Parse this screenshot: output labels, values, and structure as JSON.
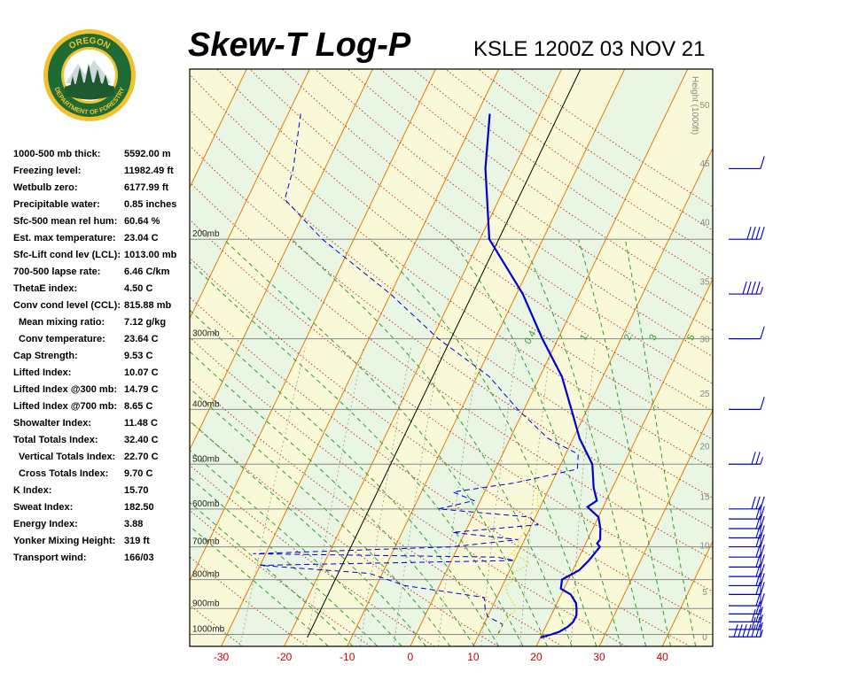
{
  "header": {
    "title": "Skew-T Log-P",
    "subtitle": "KSLE 1200Z 03 NOV 21"
  },
  "logo": {
    "top_text": "OREGON",
    "bottom_text": "DEPARTMENT OF FORESTRY",
    "colors": {
      "ring": "#1f6b34",
      "gold": "#f2c12e",
      "tree": "#1e5a2e",
      "sky": "#ffffff"
    }
  },
  "indices": [
    {
      "label": "1000-500 mb thick:",
      "value": "5592.00 m",
      "indent": false
    },
    {
      "label": "Freezing level:",
      "value": "11982.49 ft",
      "indent": false
    },
    {
      "label": "Wetbulb zero:",
      "value": "6177.99 ft",
      "indent": false
    },
    {
      "label": "Precipitable water:",
      "value": "0.85 inches",
      "indent": false
    },
    {
      "label": "Sfc-500 mean rel hum:",
      "value": "60.64 %",
      "indent": false
    },
    {
      "label": "Est. max temperature:",
      "value": "23.04 C",
      "indent": false
    },
    {
      "label": "Sfc-Lift cond lev (LCL):",
      "value": "1013.00 mb",
      "indent": false
    },
    {
      "label": "700-500 lapse rate:",
      "value": "6.46 C/km",
      "indent": false
    },
    {
      "label": "ThetaE index:",
      "value": "4.50 C",
      "indent": false
    },
    {
      "label": "Conv cond level (CCL):",
      "value": "815.88 mb",
      "indent": false
    },
    {
      "label": "Mean mixing ratio:",
      "value": "7.12 g/kg",
      "indent": true
    },
    {
      "label": "Conv temperature:",
      "value": "23.64 C",
      "indent": true
    },
    {
      "label": "Cap Strength:",
      "value": "9.53 C",
      "indent": false
    },
    {
      "label": "Lifted Index:",
      "value": "10.07 C",
      "indent": false
    },
    {
      "label": "Lifted Index @300 mb:",
      "value": "14.79 C",
      "indent": false
    },
    {
      "label": "Lifted Index @700 mb:",
      "value": "8.65 C",
      "indent": false
    },
    {
      "label": "Showalter Index:",
      "value": "11.48 C",
      "indent": false
    },
    {
      "label": "Total Totals Index:",
      "value": "32.40 C",
      "indent": false
    },
    {
      "label": "Vertical Totals Index:",
      "value": "22.70 C",
      "indent": true
    },
    {
      "label": "Cross Totals Index:",
      "value": "9.70 C",
      "indent": true
    },
    {
      "label": "K Index:",
      "value": "15.70",
      "indent": false
    },
    {
      "label": "Sweat Index:",
      "value": "182.50",
      "indent": false
    },
    {
      "label": "Energy Index:",
      "value": "3.88",
      "indent": false
    },
    {
      "label": "Yonker Mixing Height:",
      "value": "319 ft",
      "indent": false
    },
    {
      "label": "Transport wind:",
      "value": "166/03",
      "indent": false
    }
  ],
  "chart_data": {
    "type": "line",
    "chart_kind": "skew-T log-P diagram",
    "x_label_units": "C",
    "xlim": [
      -35,
      48
    ],
    "x_ticks": [
      -30,
      -20,
      -10,
      0,
      10,
      20,
      30,
      40
    ],
    "pressure_range_mb": [
      1050,
      100
    ],
    "pressure_levels": [
      {
        "p": 200,
        "label": "200mb"
      },
      {
        "p": 300,
        "label": "300mb"
      },
      {
        "p": 400,
        "label": "400mb"
      },
      {
        "p": 500,
        "label": "500mb"
      },
      {
        "p": 600,
        "label": "600mb"
      },
      {
        "p": 700,
        "label": "700mb"
      },
      {
        "p": 800,
        "label": "800mb"
      },
      {
        "p": 900,
        "label": "900mb"
      },
      {
        "p": 1000,
        "label": "1000mb"
      }
    ],
    "height_axis": {
      "title": "Height (1000ft)",
      "ticks": [
        {
          "label": "0",
          "p": 1013
        },
        {
          "label": "5",
          "p": 843
        },
        {
          "label": "10",
          "p": 697
        },
        {
          "label": "15",
          "p": 572
        },
        {
          "label": "20",
          "p": 466
        },
        {
          "label": "25",
          "p": 376
        },
        {
          "label": "30",
          "p": 301
        },
        {
          "label": "35",
          "p": 238
        },
        {
          "label": "40",
          "p": 187
        },
        {
          "label": "45",
          "p": 147
        },
        {
          "label": "50",
          "p": 116
        }
      ]
    },
    "mixing_ratio_labels": [
      {
        "text": "0.4",
        "T": -4
      },
      {
        "text": "1",
        "T": 4.5
      },
      {
        "text": "2",
        "T": 11.5
      },
      {
        "text": "3",
        "T": 15.5
      },
      {
        "text": "5",
        "T": 21.5
      }
    ],
    "series": [
      {
        "role": "temperature",
        "style": "solid",
        "color": "#0000cc",
        "points": [
          [
            1013,
            20.0
          ],
          [
            1000,
            21.5
          ],
          [
            990,
            22.5
          ],
          [
            970,
            23.5
          ],
          [
            950,
            24.0
          ],
          [
            925,
            24.0
          ],
          [
            900,
            23.5
          ],
          [
            880,
            23.0
          ],
          [
            850,
            21.5
          ],
          [
            830,
            19.5
          ],
          [
            800,
            19.0
          ],
          [
            770,
            21.0
          ],
          [
            740,
            21.8
          ],
          [
            700,
            22.5
          ],
          [
            690,
            21.8
          ],
          [
            680,
            22.0
          ],
          [
            650,
            21.2
          ],
          [
            620,
            20.0
          ],
          [
            600,
            18.0
          ],
          [
            595,
            17.5
          ],
          [
            580,
            18.5
          ],
          [
            550,
            17.0
          ],
          [
            500,
            15.0
          ],
          [
            450,
            11.0
          ],
          [
            400,
            7.5
          ],
          [
            350,
            3.5
          ],
          [
            300,
            -2.5
          ],
          [
            250,
            -9.0
          ],
          [
            200,
            -18.5
          ],
          [
            150,
            -24.5
          ],
          [
            120,
            -28.0
          ]
        ]
      },
      {
        "role": "dewpoint",
        "style": "dashed",
        "color": "#0000cc",
        "points": [
          [
            1000,
            13.0
          ],
          [
            960,
            13.0
          ],
          [
            930,
            10.0
          ],
          [
            900,
            9.0
          ],
          [
            860,
            8.0
          ],
          [
            820,
            -5.5
          ],
          [
            780,
            -12.0
          ],
          [
            755,
            -30.0
          ],
          [
            740,
            10.0
          ],
          [
            730,
            7.0
          ],
          [
            720,
            -32.0
          ],
          [
            700,
            -1.0
          ],
          [
            680,
            9.0
          ],
          [
            660,
            -2.0
          ],
          [
            640,
            11.0
          ],
          [
            620,
            9.0
          ],
          [
            600,
            -6.0
          ],
          [
            580,
            -1.0
          ],
          [
            560,
            -5.0
          ],
          [
            540,
            4.0
          ],
          [
            510,
            13.0
          ],
          [
            480,
            12.0
          ],
          [
            450,
            6.0
          ],
          [
            400,
            -1.0
          ],
          [
            350,
            -8.0
          ],
          [
            300,
            -19.0
          ],
          [
            250,
            -30.0
          ],
          [
            200,
            -45.0
          ],
          [
            170,
            -54.0
          ],
          [
            150,
            -55.0
          ],
          [
            120,
            -58.0
          ]
        ]
      },
      {
        "role": "parcel",
        "style": "dotted",
        "color": "#e6d800",
        "points": [
          [
            1013,
            13.0
          ],
          [
            950,
            13.0
          ],
          [
            900,
            14.0
          ],
          [
            850,
            11.5
          ],
          [
            820,
            10.5
          ],
          [
            800,
            11.5
          ],
          [
            780,
            10.5
          ],
          [
            760,
            12.0
          ],
          [
            745,
            12.5
          ],
          [
            720,
            9.0
          ],
          [
            700,
            9.5
          ],
          [
            680,
            9.0
          ],
          [
            660,
            9.5
          ],
          [
            640,
            9.0
          ],
          [
            620,
            8.5
          ],
          [
            600,
            10.0
          ],
          [
            580,
            9.0
          ],
          [
            560,
            8.5
          ]
        ]
      }
    ],
    "wind_barbs": [
      {
        "p": 1010,
        "barbs": [
          5,
          10,
          10,
          10,
          10,
          10,
          10
        ]
      },
      {
        "p": 980,
        "barbs": [
          5,
          10,
          10
        ]
      },
      {
        "p": 950,
        "barbs": [
          5,
          10,
          10
        ]
      },
      {
        "p": 920,
        "barbs": [
          5,
          10
        ]
      },
      {
        "p": 890,
        "barbs": [
          10,
          10
        ]
      },
      {
        "p": 850,
        "barbs": [
          10,
          10
        ]
      },
      {
        "p": 820,
        "barbs": [
          10,
          10
        ]
      },
      {
        "p": 790,
        "barbs": [
          10,
          10
        ]
      },
      {
        "p": 760,
        "barbs": [
          10,
          10
        ]
      },
      {
        "p": 730,
        "barbs": [
          10,
          10
        ]
      },
      {
        "p": 700,
        "barbs": [
          10,
          10
        ]
      },
      {
        "p": 675,
        "barbs": [
          10,
          10
        ]
      },
      {
        "p": 650,
        "barbs": [
          10,
          10
        ]
      },
      {
        "p": 625,
        "barbs": [
          10,
          10
        ]
      },
      {
        "p": 600,
        "barbs": [
          10,
          10,
          10
        ]
      },
      {
        "p": 500,
        "barbs": [
          5,
          10,
          10
        ]
      },
      {
        "p": 400,
        "barbs": [
          10
        ]
      },
      {
        "p": 300,
        "barbs": [
          10
        ]
      },
      {
        "p": 250,
        "barbs": [
          5,
          10,
          10,
          10,
          10
        ]
      },
      {
        "p": 200,
        "barbs": [
          10,
          10,
          10,
          10
        ]
      },
      {
        "p": 150,
        "barbs": [
          10
        ]
      }
    ],
    "colors": {
      "isotherm": "#e87a00",
      "dry_adiabat": "#c0392b",
      "moist_adiabat": "#2e9e2e",
      "mixing_ratio": "#999999",
      "isobar": "#888888",
      "band_a": "#e8f6e3",
      "band_b": "#f9f9da",
      "x_label": "#cc0000",
      "p_label": "#222222",
      "height_label": "#888888",
      "barb": "#0000cc"
    }
  }
}
